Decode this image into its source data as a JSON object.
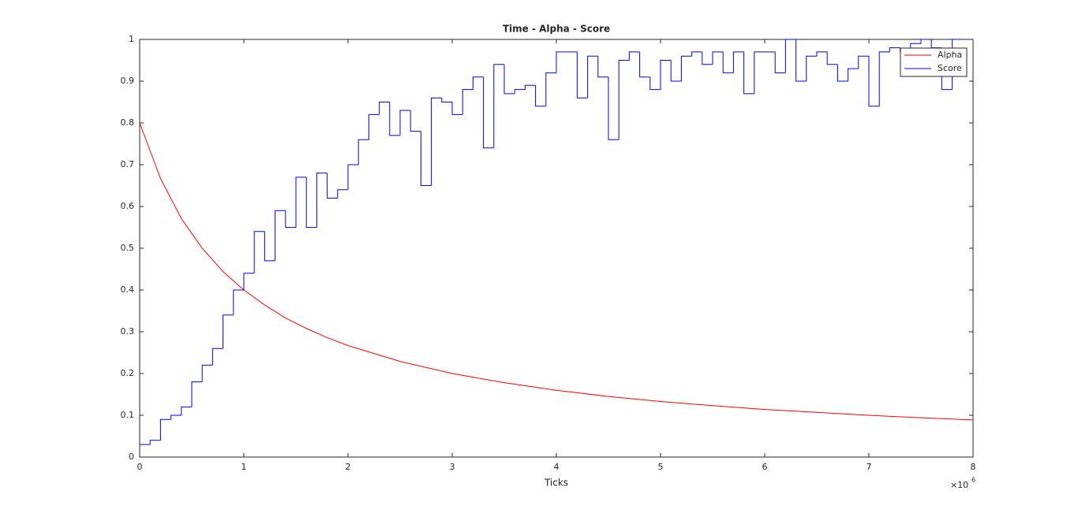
{
  "chart_data": {
    "type": "line",
    "title": "Time - Alpha - Score",
    "x_label": "Ticks",
    "x_multiplier_base": "×10",
    "x_multiplier_exponent": "6",
    "xlim": [
      0,
      8
    ],
    "xticks": [
      0,
      1,
      2,
      3,
      4,
      5,
      6,
      7,
      8
    ],
    "ylim": [
      0,
      1
    ],
    "yticks": [
      0,
      0.1,
      0.2,
      0.3,
      0.4,
      0.5,
      0.6,
      0.7,
      0.8,
      0.9,
      1
    ],
    "legend": "upper right",
    "grid": false,
    "series": [
      {
        "name": "Alpha",
        "color": "#ff0000",
        "style": "line",
        "x": [
          0,
          0.2,
          0.4,
          0.6,
          0.8,
          1,
          1.2,
          1.4,
          1.6,
          1.8,
          2,
          2.5,
          3,
          3.5,
          4,
          4.5,
          5,
          5.5,
          6,
          6.5,
          7,
          7.5,
          8
        ],
        "values": [
          0.8,
          0.667,
          0.571,
          0.5,
          0.444,
          0.4,
          0.364,
          0.333,
          0.308,
          0.286,
          0.267,
          0.229,
          0.2,
          0.178,
          0.16,
          0.145,
          0.133,
          0.123,
          0.114,
          0.107,
          0.1,
          0.094,
          0.089
        ]
      },
      {
        "name": "Score",
        "color": "#0000ff",
        "style": "stairs",
        "x": [
          0,
          0.1,
          0.2,
          0.3,
          0.4,
          0.5,
          0.6,
          0.7,
          0.8,
          0.9,
          1,
          1.1,
          1.2,
          1.3,
          1.4,
          1.5,
          1.6,
          1.7,
          1.8,
          1.9,
          2,
          2.1,
          2.2,
          2.3,
          2.4,
          2.5,
          2.6,
          2.7,
          2.8,
          2.9,
          3,
          3.1,
          3.2,
          3.3,
          3.4,
          3.5,
          3.6,
          3.7,
          3.8,
          3.9,
          4,
          4.1,
          4.2,
          4.3,
          4.4,
          4.5,
          4.6,
          4.7,
          4.8,
          4.9,
          5,
          5.1,
          5.2,
          5.3,
          5.4,
          5.5,
          5.6,
          5.7,
          5.8,
          5.9,
          6,
          6.1,
          6.2,
          6.3,
          6.4,
          6.5,
          6.6,
          6.7,
          6.8,
          6.9,
          7,
          7.1,
          7.2,
          7.3,
          7.4,
          7.5,
          7.6,
          7.7,
          7.8
        ],
        "values": [
          0.03,
          0.04,
          0.09,
          0.1,
          0.12,
          0.18,
          0.22,
          0.26,
          0.34,
          0.4,
          0.44,
          0.54,
          0.47,
          0.59,
          0.55,
          0.67,
          0.55,
          0.68,
          0.62,
          0.64,
          0.7,
          0.76,
          0.82,
          0.85,
          0.77,
          0.83,
          0.78,
          0.65,
          0.86,
          0.85,
          0.82,
          0.88,
          0.91,
          0.74,
          0.94,
          0.87,
          0.88,
          0.89,
          0.84,
          0.92,
          0.97,
          0.97,
          0.86,
          0.96,
          0.91,
          0.76,
          0.95,
          0.97,
          0.91,
          0.88,
          0.95,
          0.9,
          0.96,
          0.97,
          0.94,
          0.97,
          0.92,
          0.97,
          0.87,
          0.97,
          0.97,
          0.92,
          1,
          0.9,
          0.96,
          0.97,
          0.94,
          0.9,
          0.93,
          0.96,
          0.84,
          0.97,
          0.98,
          0.97,
          0.99,
          1,
          0.98,
          0.88,
          1
        ]
      }
    ]
  }
}
